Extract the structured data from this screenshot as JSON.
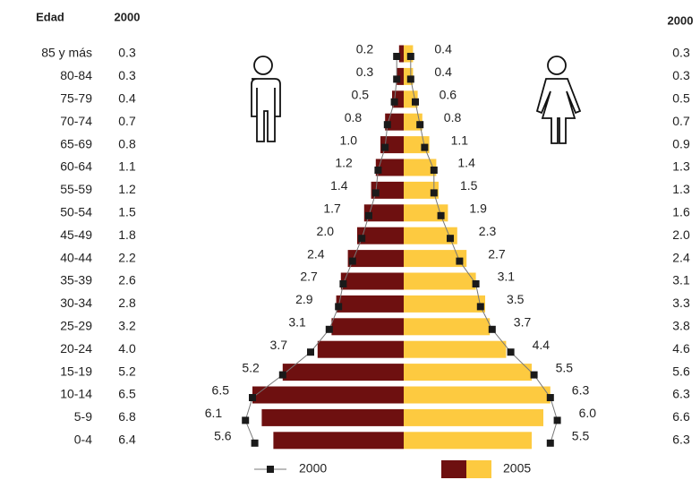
{
  "chart_data": {
    "type": "pyramid",
    "column_headers": [
      "Edad",
      "2000",
      "2000"
    ],
    "categories": [
      "85 y más",
      "80-84",
      "75-79",
      "70-74",
      "65-69",
      "60-64",
      "55-59",
      "50-54",
      "45-49",
      "40-44",
      "35-39",
      "30-34",
      "25-29",
      "20-24",
      "15-19",
      "10-14",
      "5-9",
      "0-4"
    ],
    "series": [
      {
        "name": "2000",
        "color": "#1a1a1a",
        "line_color": "#777777",
        "values_left": [
          0.3,
          0.3,
          0.4,
          0.7,
          0.8,
          1.1,
          1.2,
          1.5,
          1.8,
          2.2,
          2.6,
          2.8,
          3.2,
          4.0,
          5.2,
          6.5,
          6.8,
          6.4
        ],
        "labels_left": [
          "0.3",
          "0.3",
          "0.4",
          "0.7",
          "0.8",
          "1.1",
          "1.2",
          "1.5",
          "1.8",
          "2.2",
          "2.6",
          "2.8",
          "3.2",
          "4.0",
          "5.2",
          "6.5",
          "6.8",
          "6.4"
        ],
        "values_right": [
          0.3,
          0.3,
          0.5,
          0.7,
          0.9,
          1.3,
          1.3,
          1.6,
          2.0,
          2.4,
          3.1,
          3.3,
          3.8,
          4.6,
          5.6,
          6.3,
          6.6,
          6.3
        ],
        "labels_right": [
          "0.3",
          "0.3",
          "0.5",
          "0.7",
          "0.9",
          "1.3",
          "1.3",
          "1.6",
          "2.0",
          "2.4",
          "3.1",
          "3.3",
          "3.8",
          "4.6",
          "5.6",
          "6.3",
          "6.6",
          "6.3"
        ]
      },
      {
        "name": "2005",
        "colors": [
          "#6e1010",
          "#fdca40"
        ],
        "values_left": [
          0.2,
          0.3,
          0.5,
          0.8,
          1.0,
          1.2,
          1.4,
          1.7,
          2.0,
          2.4,
          2.7,
          2.9,
          3.1,
          3.7,
          5.2,
          6.5,
          6.1,
          5.6
        ],
        "labels_left": [
          "0.2",
          "0.3",
          "0.5",
          "0.8",
          "1.0",
          "1.2",
          "1.4",
          "1.7",
          "2.0",
          "2.4",
          "2.7",
          "2.9",
          "3.1",
          "3.7",
          "5.2",
          "6.5",
          "6.1",
          "5.6"
        ],
        "values_right": [
          0.4,
          0.4,
          0.6,
          0.8,
          1.1,
          1.4,
          1.5,
          1.9,
          2.3,
          2.7,
          3.1,
          3.5,
          3.7,
          4.4,
          5.5,
          6.3,
          6.0,
          5.5
        ],
        "labels_right": [
          "0.4",
          "0.4",
          "0.6",
          "0.8",
          "1.1",
          "1.4",
          "1.5",
          "1.9",
          "2.3",
          "2.7",
          "3.1",
          "3.5",
          "3.7",
          "4.4",
          "5.5",
          "6.3",
          "6.0",
          "5.5"
        ]
      }
    ]
  }
}
